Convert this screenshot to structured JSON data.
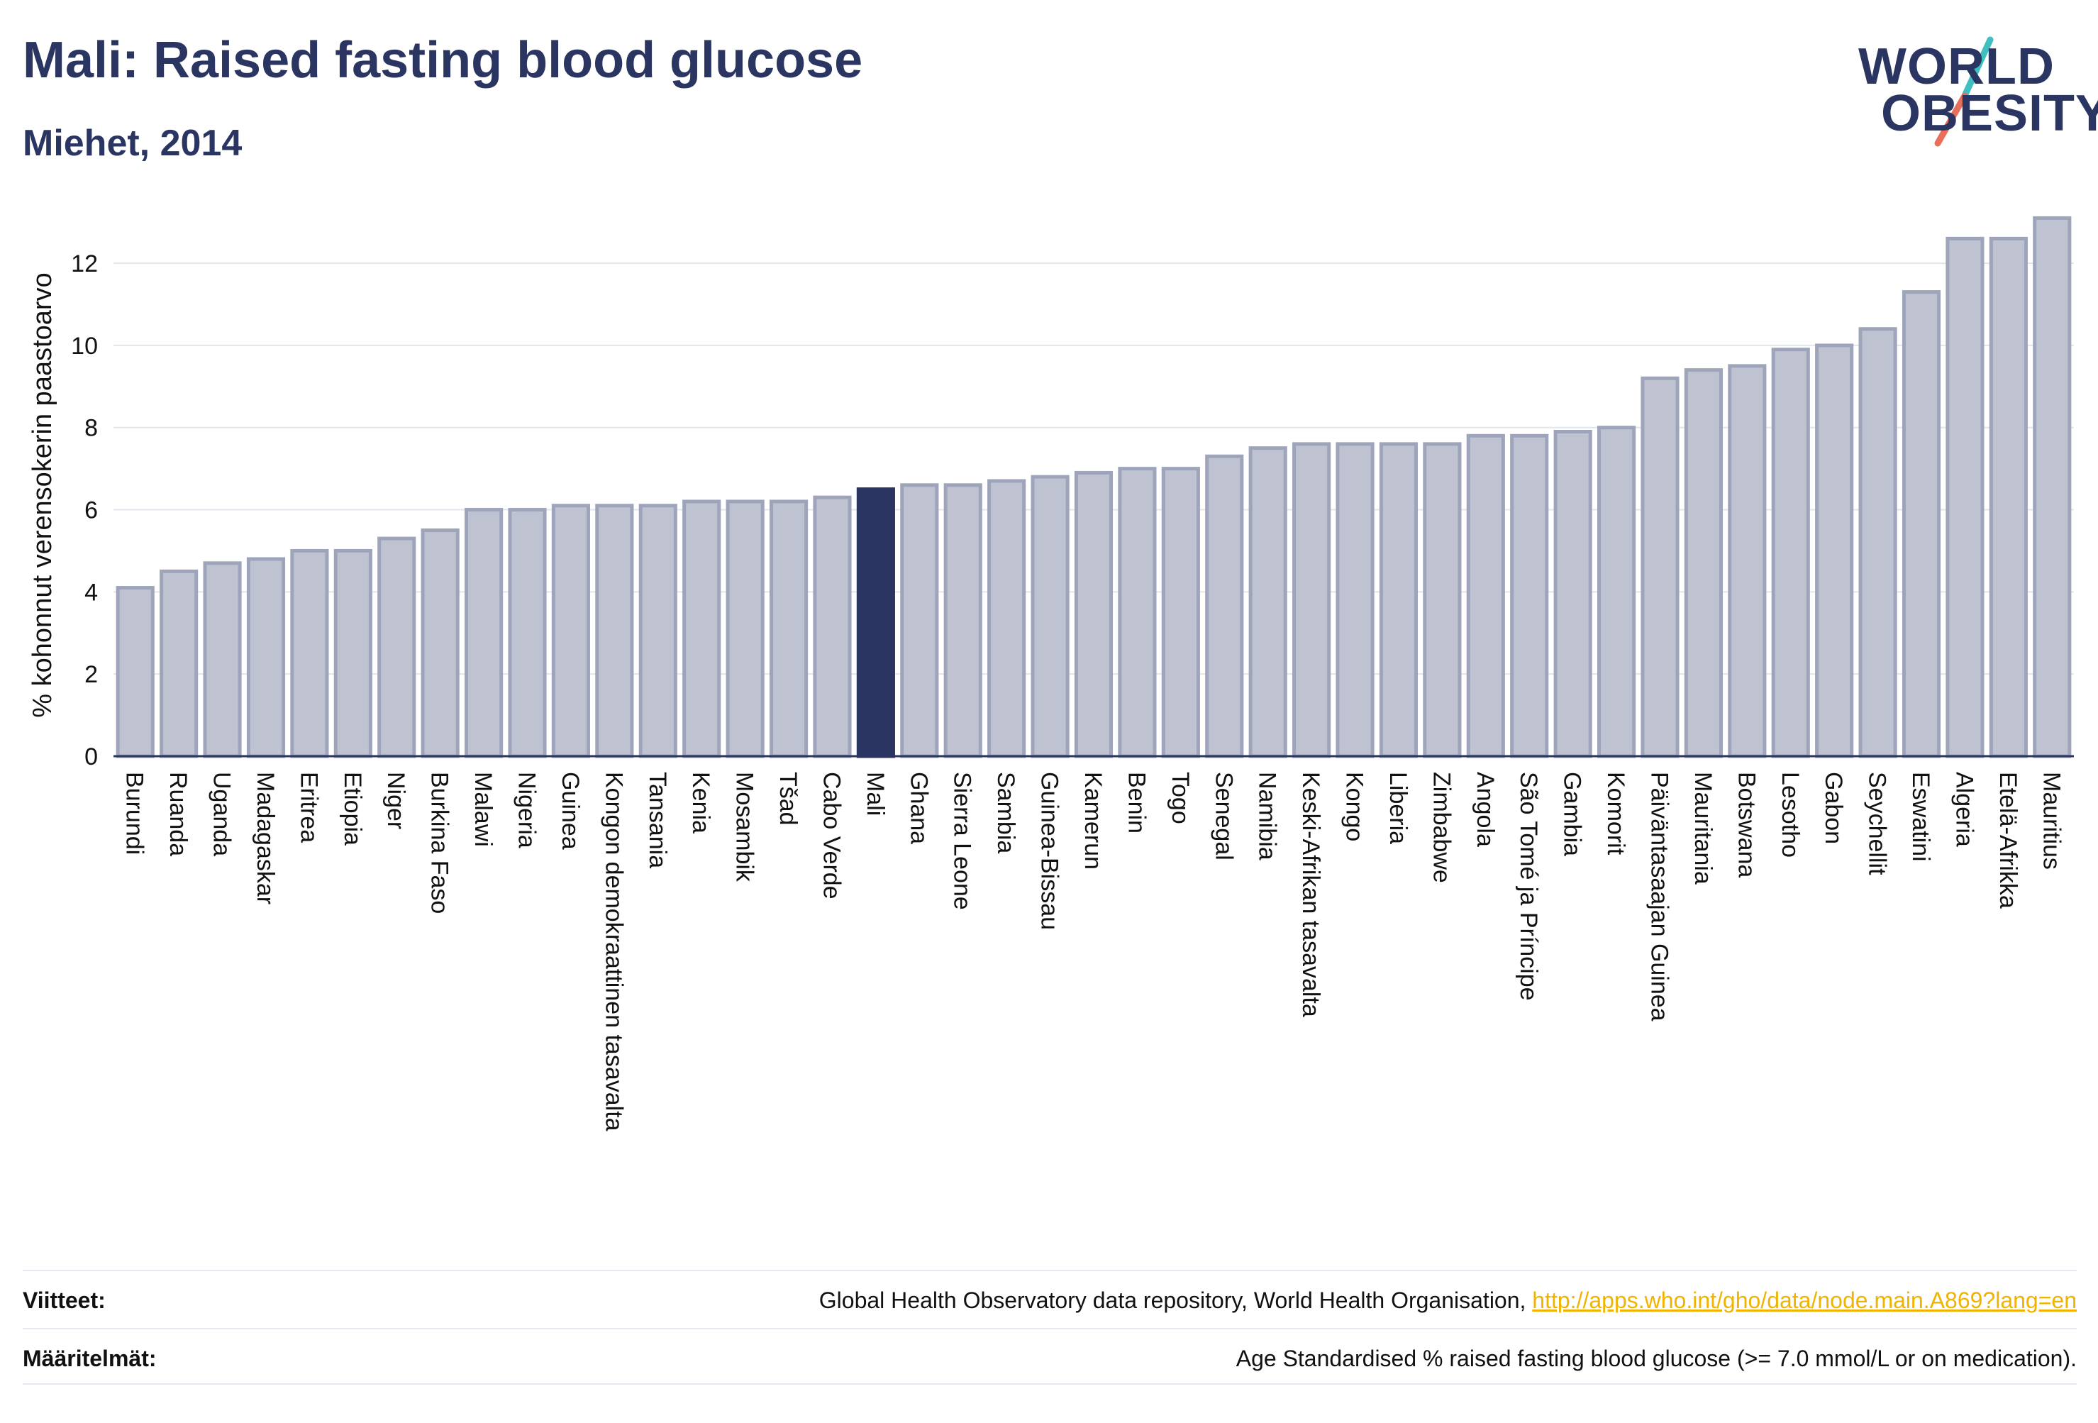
{
  "header": {
    "title": "Mali: Raised fasting blood glucose",
    "subtitle": "Miehet, 2014"
  },
  "logo": {
    "line1": "WORLD",
    "line2": "OBESITY",
    "slash_colors": [
      "#3fbfbf",
      "#e8705a"
    ]
  },
  "colors": {
    "bar_fill": "#bfc3d1",
    "bar_stroke": "#9ea4ba",
    "highlight": "#2b3561",
    "axis_text": "#111111",
    "link": "#f0b400"
  },
  "chart_data": {
    "type": "bar",
    "ylabel": "% kohonnut verensokerin paastoarvo",
    "ylim": [
      0,
      13.4
    ],
    "yticks": [
      0,
      2,
      4,
      6,
      8,
      10,
      12
    ],
    "grid": true,
    "highlight": "Mali",
    "categories": [
      "Burundi",
      "Ruanda",
      "Uganda",
      "Madagaskar",
      "Eritrea",
      "Etiopia",
      "Niger",
      "Burkina Faso",
      "Malawi",
      "Nigeria",
      "Guinea",
      "Kongon demokraattinen tasavalta",
      "Tansania",
      "Kenia",
      "Mosambik",
      "Tšad",
      "Cabo Verde",
      "Mali",
      "Ghana",
      "Sierra Leone",
      "Sambia",
      "Guinea-Bissau",
      "Kamerun",
      "Benin",
      "Togo",
      "Senegal",
      "Namibia",
      "Keski-Afrikan tasavalta",
      "Kongo",
      "Liberia",
      "Zimbabwe",
      "Angola",
      "São Tomé ja Príncipe",
      "Gambia",
      "Komorit",
      "Päiväntasaajan Guinea",
      "Mauritania",
      "Botswana",
      "Lesotho",
      "Gabon",
      "Seychellit",
      "Eswatini",
      "Algeria",
      "Etelä-Afrikka",
      "Mauritius"
    ],
    "values": [
      4.1,
      4.5,
      4.7,
      4.8,
      5.0,
      5.0,
      5.3,
      5.5,
      6.0,
      6.0,
      6.1,
      6.1,
      6.1,
      6.2,
      6.2,
      6.2,
      6.3,
      6.5,
      6.6,
      6.6,
      6.7,
      6.8,
      6.9,
      7.0,
      7.0,
      7.3,
      7.5,
      7.6,
      7.6,
      7.6,
      7.6,
      7.8,
      7.8,
      7.9,
      8.0,
      9.2,
      9.4,
      9.5,
      9.9,
      10.0,
      10.4,
      11.3,
      12.6,
      12.6,
      13.1
    ]
  },
  "footer": {
    "sources_label": "Viitteet:",
    "sources_text": "Global Health Observatory data repository, World Health Organisation,",
    "sources_link": "http://apps.who.int/gho/data/node.main.A869?lang=en",
    "definitions_label": "Määritelmät:",
    "definitions_text": "Age Standardised % raised fasting blood glucose (>= 7.0 mmol/L or on medication)."
  }
}
